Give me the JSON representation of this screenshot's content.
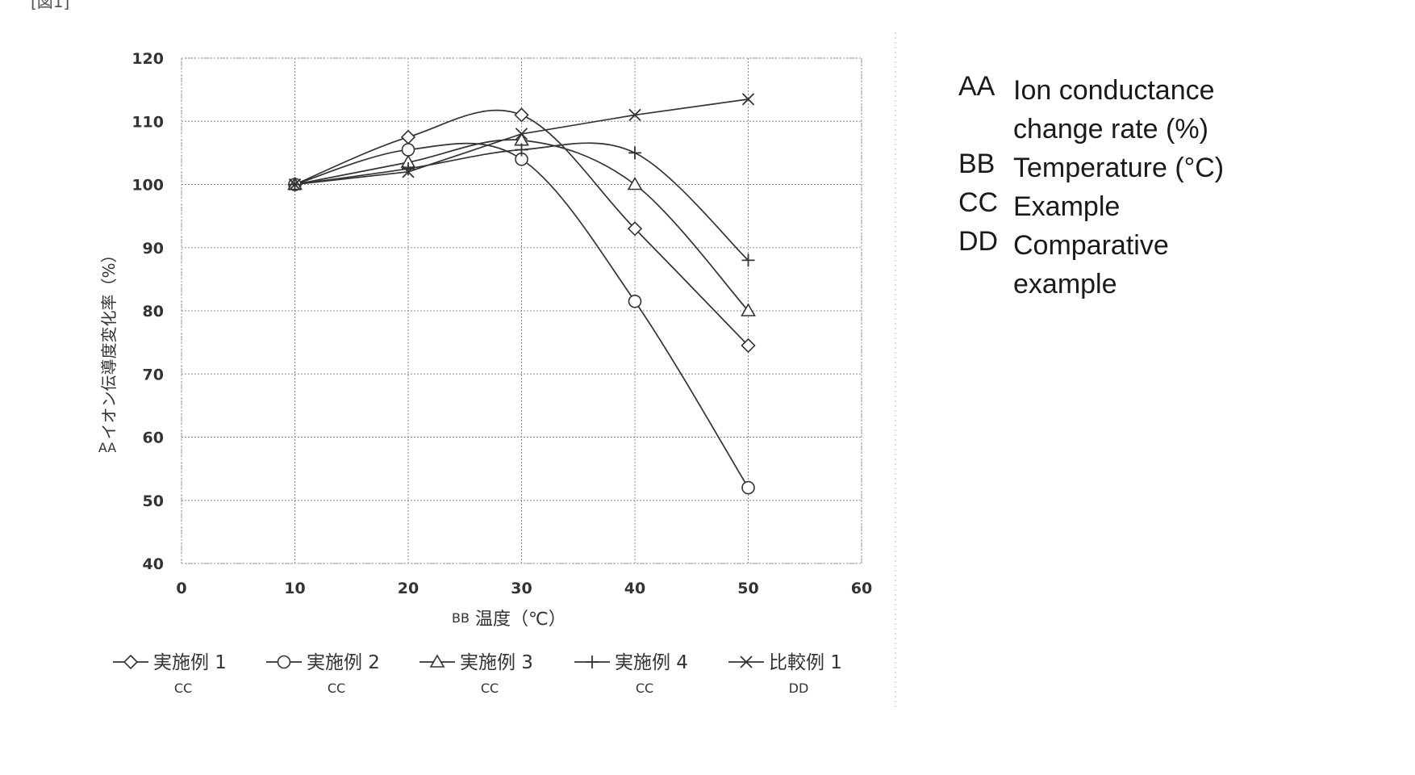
{
  "header_fragment": "[図1]",
  "chart_data": {
    "type": "line",
    "ylabel": "イオン伝導度変化率（%）",
    "ylabel_code": "AA",
    "xlabel": "温度（℃）",
    "xlabel_code": "BB",
    "xlim": [
      0,
      60
    ],
    "ylim": [
      40,
      120
    ],
    "xticks": [
      0,
      10,
      20,
      30,
      40,
      50,
      60
    ],
    "yticks": [
      40,
      50,
      60,
      70,
      80,
      90,
      100,
      110,
      120
    ],
    "x": [
      10,
      20,
      30,
      40,
      50
    ],
    "series": [
      {
        "name": "実施例 1",
        "code": "CC",
        "marker": "diamond",
        "values": [
          100,
          107.5,
          111,
          93,
          74.5
        ]
      },
      {
        "name": "実施例 2",
        "code": "CC",
        "marker": "circle",
        "values": [
          100,
          105.5,
          104,
          81.5,
          52
        ]
      },
      {
        "name": "実施例 3",
        "code": "CC",
        "marker": "triangle",
        "values": [
          100,
          103.5,
          107,
          100,
          80
        ]
      },
      {
        "name": "実施例 4",
        "code": "CC",
        "marker": "plus",
        "values": [
          100,
          102.5,
          105.5,
          105,
          88
        ]
      },
      {
        "name": "比較例 1",
        "code": "DD",
        "marker": "x",
        "values": [
          100,
          102,
          108,
          111,
          113.5
        ]
      }
    ],
    "legend_position": "bottom",
    "grid": true
  },
  "key": [
    {
      "code": "AA",
      "text": "Ion conductance change rate (%)"
    },
    {
      "code": "BB",
      "text": "Temperature (°C)"
    },
    {
      "code": "CC",
      "text": "Example"
    },
    {
      "code": "DD",
      "text": "Comparative example"
    }
  ]
}
